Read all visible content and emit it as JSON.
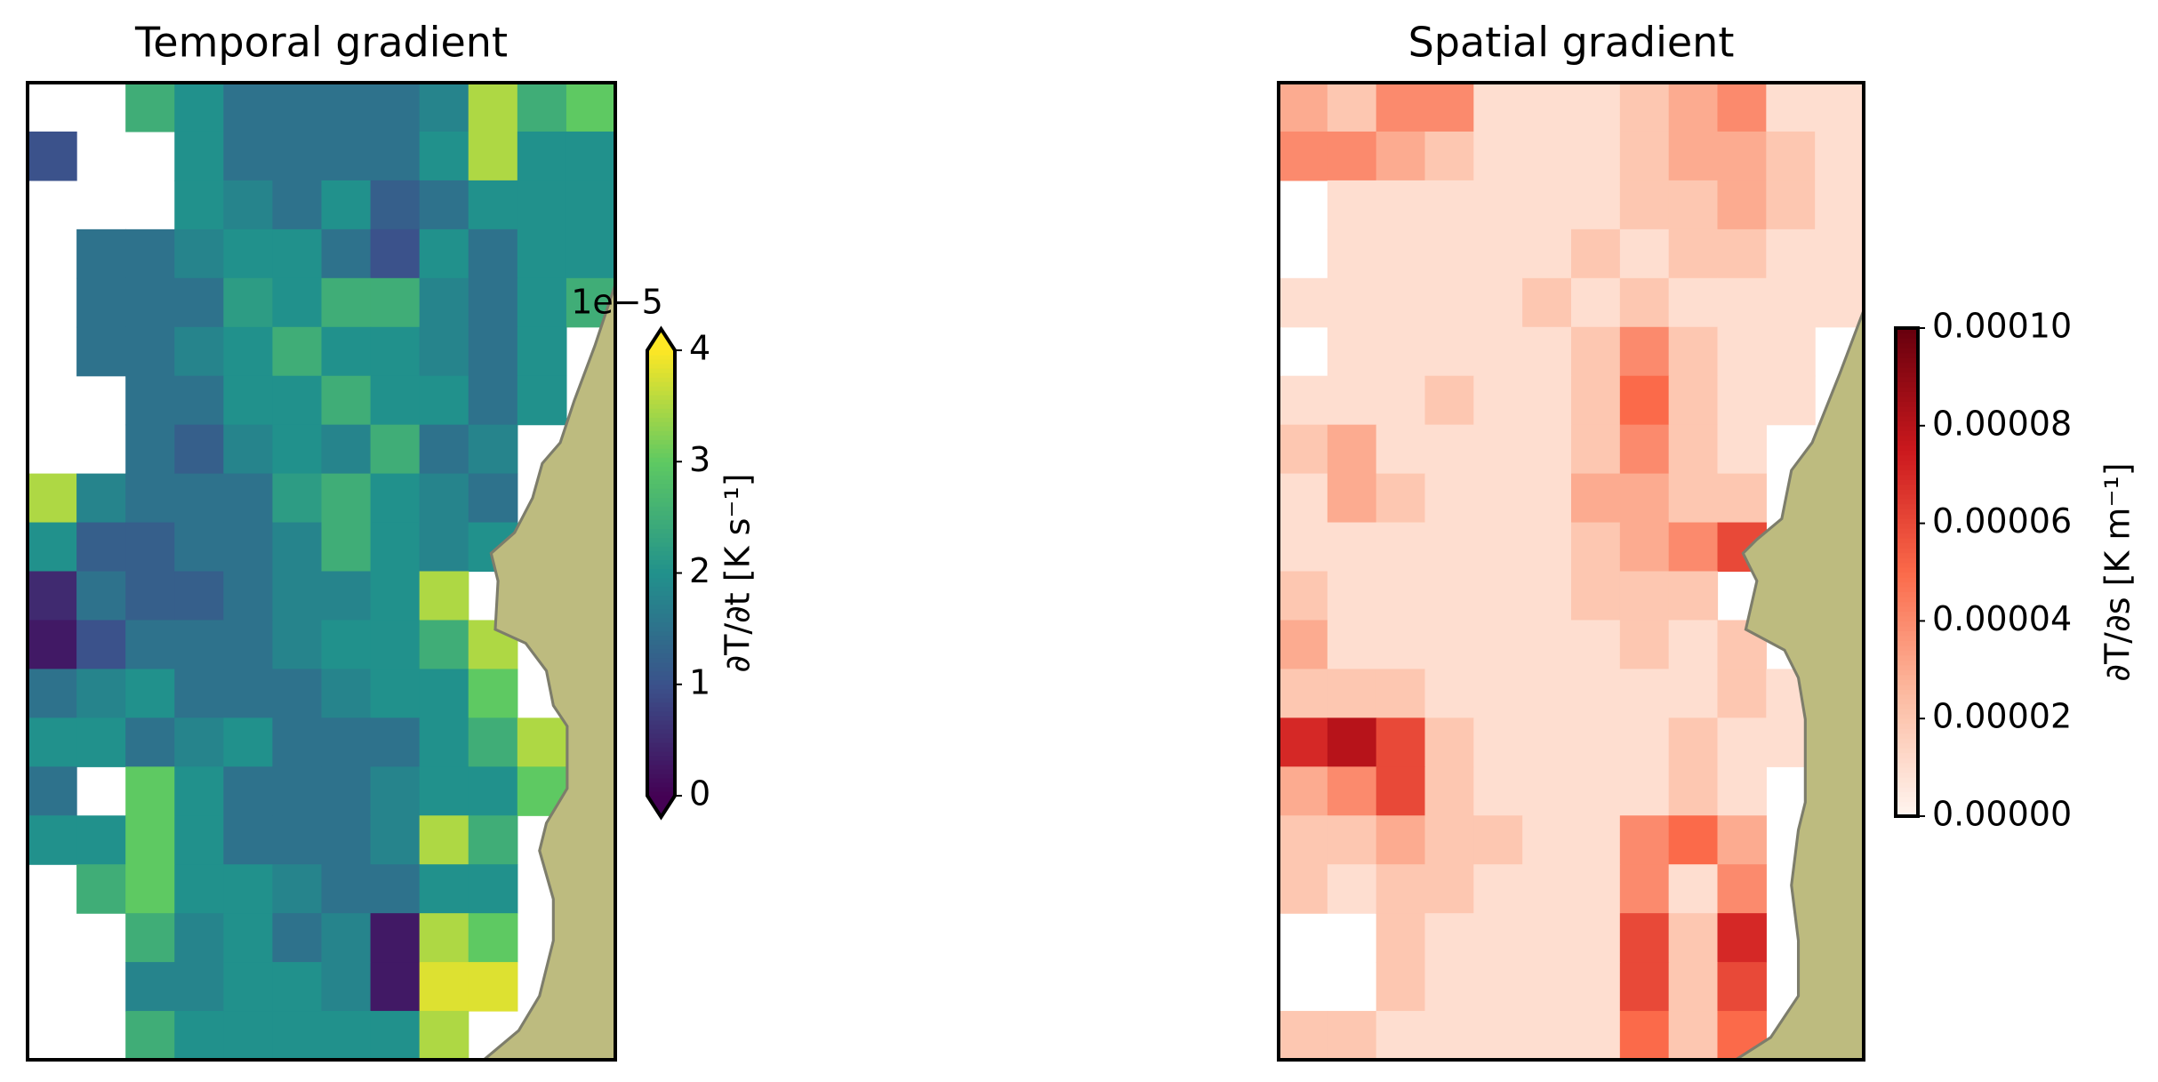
{
  "chart_data": [
    {
      "type": "heatmap",
      "title": "Temporal gradient",
      "colorbar_label": "∂T/∂t [K s⁻¹]",
      "offset_text": "1e−5",
      "clim": [
        0,
        4
      ],
      "cticks": [
        0,
        1,
        2,
        3,
        4
      ],
      "extend": "both",
      "colormap": [
        "#440154",
        "#3b528b",
        "#21918c",
        "#5ec962",
        "#fde725"
      ],
      "z": [
        [
          null,
          null,
          2.5,
          2,
          1.5,
          1.5,
          1.5,
          1.5,
          1.8,
          3.5,
          2.5,
          3
        ],
        [
          1,
          null,
          null,
          2,
          1.5,
          1.5,
          1.5,
          1.5,
          2,
          3.5,
          2,
          2
        ],
        [
          null,
          null,
          null,
          2,
          1.8,
          1.5,
          2,
          1.2,
          1.5,
          2,
          2,
          2
        ],
        [
          null,
          1.5,
          1.5,
          1.8,
          2,
          2,
          1.5,
          1,
          2,
          1.5,
          2,
          2
        ],
        [
          null,
          1.5,
          1.5,
          1.5,
          2.2,
          2,
          2.5,
          2.5,
          1.8,
          1.5,
          2,
          2.5
        ],
        [
          null,
          1.5,
          1.5,
          1.8,
          2,
          2.5,
          2,
          2,
          1.8,
          1.5,
          2,
          null
        ],
        [
          null,
          null,
          1.5,
          1.5,
          2,
          2,
          2.5,
          2,
          2,
          1.5,
          2,
          null
        ],
        [
          null,
          null,
          1.5,
          1.2,
          1.8,
          2,
          1.8,
          2.5,
          1.5,
          1.8,
          null,
          null
        ],
        [
          3.5,
          1.8,
          1.5,
          1.5,
          1.5,
          2.2,
          2.5,
          2,
          1.8,
          1.5,
          null,
          null
        ],
        [
          2,
          1.2,
          1.2,
          1.5,
          1.5,
          1.8,
          2.5,
          2,
          1.8,
          2,
          null,
          null
        ],
        [
          0.5,
          1.5,
          1.2,
          1.2,
          1.5,
          1.8,
          1.8,
          2,
          3.5,
          null,
          null,
          null
        ],
        [
          0.3,
          1,
          1.5,
          1.5,
          1.5,
          1.8,
          2,
          2,
          2.5,
          3.5,
          null,
          null
        ],
        [
          1.5,
          1.8,
          2,
          1.5,
          1.5,
          1.5,
          1.8,
          2,
          2,
          3,
          null,
          null
        ],
        [
          2,
          2,
          1.5,
          1.8,
          2,
          1.5,
          1.5,
          1.5,
          2,
          2.5,
          3.5,
          null
        ],
        [
          1.5,
          null,
          3,
          2,
          1.5,
          1.5,
          1.5,
          1.8,
          2,
          2,
          3,
          null
        ],
        [
          2,
          2,
          3,
          2,
          1.5,
          1.5,
          1.5,
          1.8,
          3.5,
          2.5,
          null,
          null
        ],
        [
          null,
          2.5,
          3,
          2,
          2,
          1.8,
          1.5,
          1.5,
          2,
          2,
          null,
          null
        ],
        [
          null,
          null,
          2.5,
          1.8,
          2,
          1.5,
          1.8,
          0.3,
          3.5,
          3,
          null,
          null
        ],
        [
          null,
          null,
          1.8,
          1.8,
          2,
          2,
          1.8,
          0.3,
          3.8,
          3.8,
          null,
          null
        ],
        [
          null,
          null,
          2.5,
          2,
          2,
          2,
          2,
          2,
          3.5,
          null,
          null,
          null
        ]
      ]
    },
    {
      "type": "heatmap",
      "title": "Spatial gradient",
      "colorbar_label": "∂T/∂s [K m⁻¹]",
      "clim": [
        0,
        0.0001
      ],
      "cticks": [
        {
          "value": 0,
          "label": "0.00000"
        },
        {
          "value": 2e-05,
          "label": "0.00002"
        },
        {
          "value": 4e-05,
          "label": "0.00004"
        },
        {
          "value": 6e-05,
          "label": "0.00006"
        },
        {
          "value": 8e-05,
          "label": "0.00008"
        },
        {
          "value": 0.0001,
          "label": "0.00010"
        }
      ],
      "extend": "neither",
      "colormap": [
        "#fff5f0",
        "#fcbba1",
        "#fb6a4a",
        "#cb181d",
        "#67000d"
      ],
      "z": [
        [
          3e-05,
          2e-05,
          4e-05,
          4e-05,
          1e-05,
          1e-05,
          1e-05,
          2e-05,
          3e-05,
          4e-05,
          1e-05,
          1e-05
        ],
        [
          4e-05,
          4e-05,
          3e-05,
          2e-05,
          1e-05,
          1e-05,
          1e-05,
          2e-05,
          3e-05,
          3e-05,
          2e-05,
          1e-05
        ],
        [
          null,
          1e-05,
          1e-05,
          1e-05,
          1e-05,
          1e-05,
          1e-05,
          2e-05,
          2e-05,
          3e-05,
          2e-05,
          1e-05
        ],
        [
          null,
          1e-05,
          1e-05,
          1e-05,
          1e-05,
          1e-05,
          2e-05,
          1e-05,
          2e-05,
          2e-05,
          1e-05,
          1e-05
        ],
        [
          1e-05,
          1e-05,
          1e-05,
          1e-05,
          1e-05,
          2e-05,
          1e-05,
          2e-05,
          1e-05,
          1e-05,
          1e-05,
          1e-05
        ],
        [
          null,
          1e-05,
          1e-05,
          1e-05,
          1e-05,
          1e-05,
          2e-05,
          4e-05,
          2e-05,
          1e-05,
          1e-05,
          null
        ],
        [
          1e-05,
          1e-05,
          1e-05,
          2e-05,
          1e-05,
          1e-05,
          2e-05,
          5e-05,
          2e-05,
          1e-05,
          1e-05,
          null
        ],
        [
          2e-05,
          3e-05,
          1e-05,
          1e-05,
          1e-05,
          1e-05,
          2e-05,
          4e-05,
          2e-05,
          1e-05,
          null,
          null
        ],
        [
          1e-05,
          3e-05,
          2e-05,
          1e-05,
          1e-05,
          1e-05,
          3e-05,
          3e-05,
          2e-05,
          2e-05,
          null,
          null
        ],
        [
          1e-05,
          1e-05,
          1e-05,
          1e-05,
          1e-05,
          1e-05,
          2e-05,
          3e-05,
          4e-05,
          6e-05,
          null,
          null
        ],
        [
          2e-05,
          1e-05,
          1e-05,
          1e-05,
          1e-05,
          1e-05,
          2e-05,
          2e-05,
          2e-05,
          null,
          null,
          null
        ],
        [
          3e-05,
          1e-05,
          1e-05,
          1e-05,
          1e-05,
          1e-05,
          1e-05,
          2e-05,
          1e-05,
          2e-05,
          null,
          null
        ],
        [
          2e-05,
          2e-05,
          2e-05,
          1e-05,
          1e-05,
          1e-05,
          1e-05,
          1e-05,
          1e-05,
          2e-05,
          1e-05,
          null
        ],
        [
          7e-05,
          8e-05,
          6e-05,
          2e-05,
          1e-05,
          1e-05,
          1e-05,
          1e-05,
          2e-05,
          1e-05,
          1e-05,
          null
        ],
        [
          3e-05,
          4e-05,
          6e-05,
          2e-05,
          1e-05,
          1e-05,
          1e-05,
          1e-05,
          2e-05,
          1e-05,
          null,
          null
        ],
        [
          2e-05,
          2e-05,
          3e-05,
          2e-05,
          2e-05,
          1e-05,
          1e-05,
          4e-05,
          5e-05,
          3e-05,
          null,
          null
        ],
        [
          2e-05,
          1e-05,
          2e-05,
          2e-05,
          1e-05,
          1e-05,
          1e-05,
          4e-05,
          1e-05,
          4e-05,
          null,
          null
        ],
        [
          null,
          null,
          2e-05,
          1e-05,
          1e-05,
          1e-05,
          1e-05,
          6e-05,
          2e-05,
          7e-05,
          null,
          null
        ],
        [
          null,
          null,
          2e-05,
          1e-05,
          1e-05,
          1e-05,
          1e-05,
          6e-05,
          2e-05,
          6e-05,
          null,
          null
        ],
        [
          2e-05,
          2e-05,
          1e-05,
          1e-05,
          1e-05,
          1e-05,
          1e-05,
          5e-05,
          2e-05,
          5e-05,
          null,
          null
        ]
      ]
    }
  ]
}
